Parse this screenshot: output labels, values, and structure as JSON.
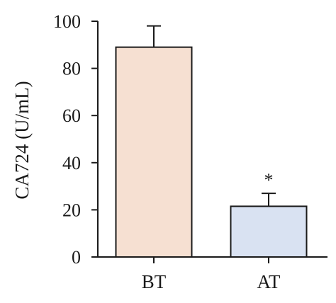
{
  "chart_data": {
    "type": "bar",
    "title": "",
    "xlabel": "",
    "ylabel": "CA724 (U/mL)",
    "categories": [
      "BT",
      "AT"
    ],
    "values": [
      89,
      21.5
    ],
    "errors": [
      9,
      5.5
    ],
    "bar_colors": [
      "#f6e0d2",
      "#d9e2f2"
    ],
    "outline_color": "#1a1a1a",
    "annotations": [
      "",
      "*"
    ],
    "ylim": [
      0,
      100
    ],
    "yticks": [
      0,
      20,
      40,
      60,
      80,
      100
    ],
    "grid": false,
    "legend": "none"
  }
}
